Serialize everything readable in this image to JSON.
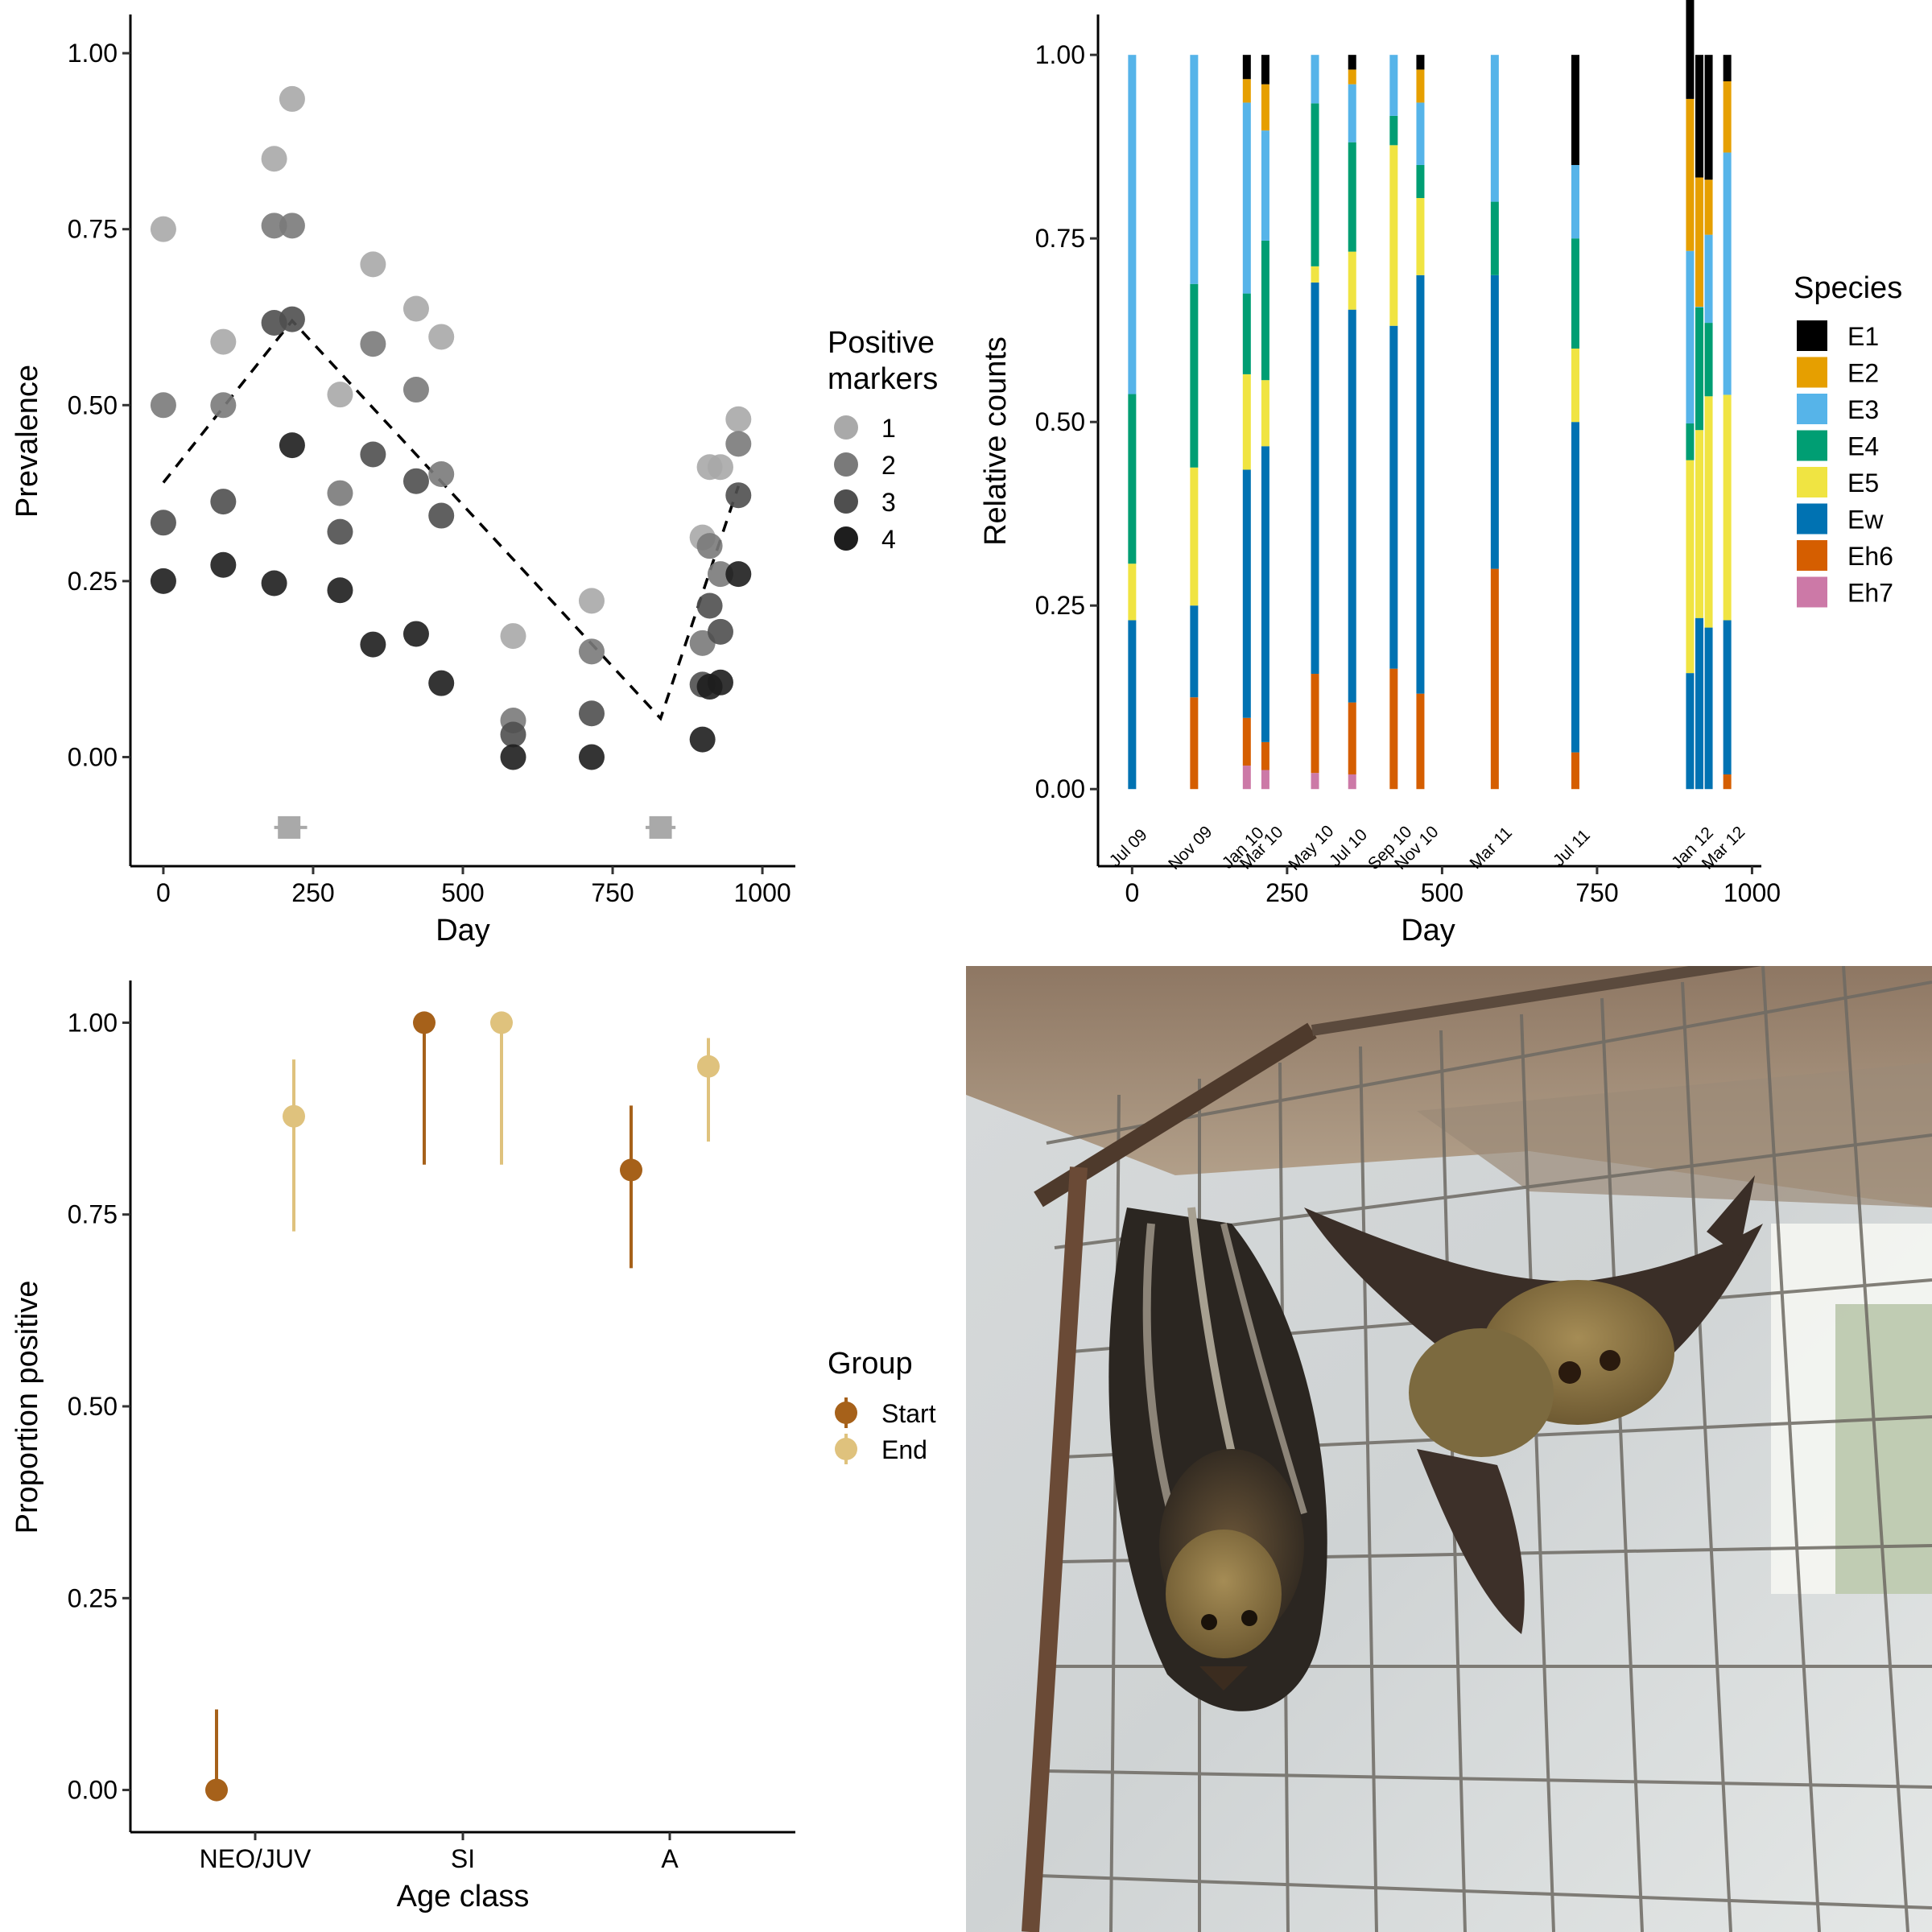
{
  "chart_data": [
    {
      "type": "scatter",
      "xlabel": "Day",
      "ylabel": "Prevalence",
      "xlim": [
        -55,
        1055
      ],
      "ylim": [
        -0.155,
        1.055
      ],
      "xticks": [
        0,
        250,
        500,
        750,
        1000
      ],
      "xtick_labels": [
        "0",
        "250",
        "500",
        "750",
        "1000"
      ],
      "yticks": [
        0,
        0.25,
        0.5,
        0.75,
        1
      ],
      "ytick_labels": [
        "0.00",
        "0.25",
        "0.50",
        "0.75",
        "1.00"
      ],
      "legend": {
        "title": "Positive markers",
        "title_lines": [
          "Positive",
          "markers"
        ],
        "position": "right",
        "entries": [
          "1",
          "2",
          "3",
          "4"
        ],
        "colors": [
          "#a9a9a9",
          "#7a7a7a",
          "#4f4f4f",
          "#1e1e1e"
        ]
      },
      "series": [
        {
          "name": "1",
          "color": "#a9a9a9",
          "points": [
            [
              0,
              0.75
            ],
            [
              100,
              0.59
            ],
            [
              185,
              0.85
            ],
            [
              215,
              0.935
            ],
            [
              295,
              0.515
            ],
            [
              350,
              0.7
            ],
            [
              422,
              0.637
            ],
            [
              464,
              0.597
            ],
            [
              584,
              0.172
            ],
            [
              715,
              0.222
            ],
            [
              900,
              0.312
            ],
            [
              912,
              0.412
            ],
            [
              930,
              0.412
            ],
            [
              960,
              0.48
            ]
          ]
        },
        {
          "name": "2",
          "color": "#7a7a7a",
          "points": [
            [
              0,
              0.5
            ],
            [
              100,
              0.5
            ],
            [
              185,
              0.755
            ],
            [
              215,
              0.755
            ],
            [
              295,
              0.375
            ],
            [
              350,
              0.587
            ],
            [
              422,
              0.522
            ],
            [
              464,
              0.402
            ],
            [
              584,
              0.052
            ],
            [
              715,
              0.15
            ],
            [
              900,
              0.162
            ],
            [
              912,
              0.3
            ],
            [
              930,
              0.26
            ],
            [
              960,
              0.445
            ]
          ]
        },
        {
          "name": "3",
          "color": "#4f4f4f",
          "points": [
            [
              0,
              0.333
            ],
            [
              100,
              0.363
            ],
            [
              185,
              0.617
            ],
            [
              215,
              0.622
            ],
            [
              295,
              0.32
            ],
            [
              350,
              0.43
            ],
            [
              422,
              0.392
            ],
            [
              464,
              0.343
            ],
            [
              584,
              0.032
            ],
            [
              715,
              0.062
            ],
            [
              900,
              0.103
            ],
            [
              912,
              0.215
            ],
            [
              930,
              0.178
            ],
            [
              960,
              0.372
            ]
          ]
        },
        {
          "name": "4",
          "color": "#1e1e1e",
          "points": [
            [
              0,
              0.25
            ],
            [
              100,
              0.273
            ],
            [
              185,
              0.247
            ],
            [
              215,
              0.443
            ],
            [
              295,
              0.237
            ],
            [
              350,
              0.16
            ],
            [
              422,
              0.175
            ],
            [
              464,
              0.105
            ],
            [
              584,
              0.0
            ],
            [
              715,
              0.0
            ],
            [
              900,
              0.025
            ],
            [
              912,
              0.1
            ],
            [
              930,
              0.106
            ],
            [
              960,
              0.26
            ]
          ]
        }
      ],
      "trend_line": {
        "style": "dashed",
        "points": [
          [
            0,
            0.39
          ],
          [
            215,
            0.62
          ],
          [
            830,
            0.055
          ],
          [
            960,
            0.385
          ]
        ]
      },
      "interval_markers": [
        {
          "x": 210,
          "y": -0.1,
          "x_low": 185,
          "x_high": 240,
          "color": "#a9a9a9"
        },
        {
          "x": 830,
          "y": -0.1,
          "x_low": 805,
          "x_high": 855,
          "color": "#a9a9a9"
        }
      ]
    },
    {
      "type": "bar",
      "stacked": true,
      "xlabel": "Day",
      "ylabel": "Relative counts",
      "xlim": [
        -55,
        1015
      ],
      "ylim": [
        -0.105,
        1.055
      ],
      "xticks": [
        0,
        250,
        500,
        750,
        1000
      ],
      "xtick_labels": [
        "0",
        "250",
        "500",
        "750",
        "1000"
      ],
      "yticks": [
        0,
        0.25,
        0.5,
        0.75,
        1
      ],
      "ytick_labels": [
        "0.00",
        "0.25",
        "0.50",
        "0.75",
        "1.00"
      ],
      "species": [
        "E1",
        "E2",
        "E3",
        "E4",
        "E5",
        "Ew",
        "Eh6",
        "Eh7"
      ],
      "colors": {
        "E1": "#000000",
        "E2": "#E69F00",
        "E3": "#56B4E9",
        "E4": "#009E73",
        "E5": "#F0E442",
        "Ew": "#0072B2",
        "Eh6": "#D55E00",
        "Eh7": "#CC79A7"
      },
      "legend": {
        "title": "Species",
        "position": "right"
      },
      "date_labels": [
        {
          "x": 0,
          "label": "Jul 09"
        },
        {
          "x": 100,
          "label": "Nov 09"
        },
        {
          "x": 185,
          "label": "Jan 10"
        },
        {
          "x": 215,
          "label": "Mar 10"
        },
        {
          "x": 295,
          "label": "May 10"
        },
        {
          "x": 355,
          "label": "Jul 10"
        },
        {
          "x": 422,
          "label": "Sep 10"
        },
        {
          "x": 465,
          "label": "Nov 10"
        },
        {
          "x": 585,
          "label": "Mar 11"
        },
        {
          "x": 715,
          "label": "Jul 11"
        },
        {
          "x": 910,
          "label": "Jan 12"
        },
        {
          "x": 960,
          "label": "Mar 12"
        }
      ],
      "bars": [
        {
          "x": 0,
          "values": {
            "Eh7": 0,
            "Eh6": 0,
            "Ew": 0.23,
            "E5": 0.077,
            "E4": 0.231,
            "E3": 0.462,
            "E2": 0,
            "E1": 0
          }
        },
        {
          "x": 100,
          "values": {
            "Eh7": 0,
            "Eh6": 0.125,
            "Ew": 0.125,
            "E5": 0.188,
            "E4": 0.25,
            "E3": 0.312,
            "E2": 0,
            "E1": 0
          }
        },
        {
          "x": 185,
          "values": {
            "Eh7": 0.032,
            "Eh6": 0.065,
            "Ew": 0.338,
            "E5": 0.13,
            "E4": 0.11,
            "E3": 0.26,
            "E2": 0.032,
            "E1": 0.033
          }
        },
        {
          "x": 215,
          "values": {
            "Eh7": 0.026,
            "Eh6": 0.038,
            "Ew": 0.403,
            "E5": 0.09,
            "E4": 0.19,
            "E3": 0.15,
            "E2": 0.063,
            "E1": 0.04
          }
        },
        {
          "x": 295,
          "values": {
            "Eh7": 0.022,
            "Eh6": 0.135,
            "Ew": 0.533,
            "E5": 0.022,
            "E4": 0.222,
            "E3": 0.066,
            "E2": 0,
            "E1": 0
          }
        },
        {
          "x": 355,
          "values": {
            "Eh7": 0.02,
            "Eh6": 0.098,
            "Ew": 0.535,
            "E5": 0.079,
            "E4": 0.149,
            "E3": 0.079,
            "E2": 0.02,
            "E1": 0.02
          }
        },
        {
          "x": 422,
          "values": {
            "Eh7": 0,
            "Eh6": 0.164,
            "Ew": 0.467,
            "E5": 0.246,
            "E4": 0.04,
            "E3": 0.083,
            "E2": 0,
            "E1": 0
          }
        },
        {
          "x": 465,
          "values": {
            "Eh7": 0,
            "Eh6": 0.13,
            "Ew": 0.57,
            "E5": 0.105,
            "E4": 0.045,
            "E3": 0.085,
            "E2": 0.045,
            "E1": 0.02
          }
        },
        {
          "x": 585,
          "values": {
            "Eh7": 0,
            "Eh6": 0.3,
            "Ew": 0.4,
            "E5": 0,
            "E4": 0.1,
            "E3": 0.2,
            "E2": 0,
            "E1": 0
          }
        },
        {
          "x": 715,
          "values": {
            "Eh7": 0,
            "Eh6": 0.05,
            "Ew": 0.45,
            "E5": 0.1,
            "E4": 0.15,
            "E3": 0.1,
            "E2": 0,
            "E1": 0.15
          }
        },
        {
          "x": 900,
          "values": {
            "Eh7": 0,
            "Eh6": 0,
            "Ew": 0.158,
            "E5": 0.29,
            "E4": 0.05,
            "E3": 0.235,
            "E2": 0.207,
            "E1": 0.16
          }
        },
        {
          "x": 915,
          "values": {
            "Eh7": 0,
            "Eh6": 0,
            "Ew": 0.233,
            "E5": 0.256,
            "E4": 0.167,
            "E3": 0.001,
            "E2": 0.176,
            "E1": 0.167
          }
        },
        {
          "x": 930,
          "values": {
            "Eh7": 0,
            "Eh6": 0,
            "Ew": 0.22,
            "E5": 0.315,
            "E4": 0.1,
            "E3": 0.12,
            "E2": 0.075,
            "E1": 0.17
          }
        },
        {
          "x": 960,
          "values": {
            "Eh7": 0,
            "Eh6": 0.02,
            "Ew": 0.21,
            "E5": 0.307,
            "E4": 0,
            "E3": 0.33,
            "E2": 0.097,
            "E1": 0.036
          }
        }
      ]
    },
    {
      "type": "scatter",
      "subtype": "pointrange",
      "xlabel": "Age class",
      "ylabel": "Proportion positive",
      "categories": [
        "NEO/JUV",
        "SI",
        "A"
      ],
      "ylim": [
        -0.055,
        1.055
      ],
      "yticks": [
        0,
        0.25,
        0.5,
        0.75,
        1
      ],
      "ytick_labels": [
        "0.00",
        "0.25",
        "0.50",
        "0.75",
        "1.00"
      ],
      "legend": {
        "title": "Group",
        "position": "right",
        "entries": [
          "Start",
          "End"
        ]
      },
      "series": [
        {
          "name": "Start",
          "color": "#A6611A",
          "points": [
            {
              "category": "NEO/JUV",
              "y": 0.0,
              "low": 0.0,
              "high": 0.105
            },
            {
              "category": "SI",
              "y": 1.0,
              "low": 0.815,
              "high": 1.0
            },
            {
              "category": "A",
              "y": 0.808,
              "low": 0.68,
              "high": 0.892
            }
          ]
        },
        {
          "name": "End",
          "color": "#DFC27D",
          "points": [
            {
              "category": "NEO/JUV",
              "y": 0.878,
              "low": 0.728,
              "high": 0.952
            },
            {
              "category": "SI",
              "y": 1.0,
              "low": 0.815,
              "high": 1.0
            },
            {
              "category": "A",
              "y": 0.943,
              "low": 0.845,
              "high": 0.98
            }
          ]
        }
      ]
    }
  ]
}
